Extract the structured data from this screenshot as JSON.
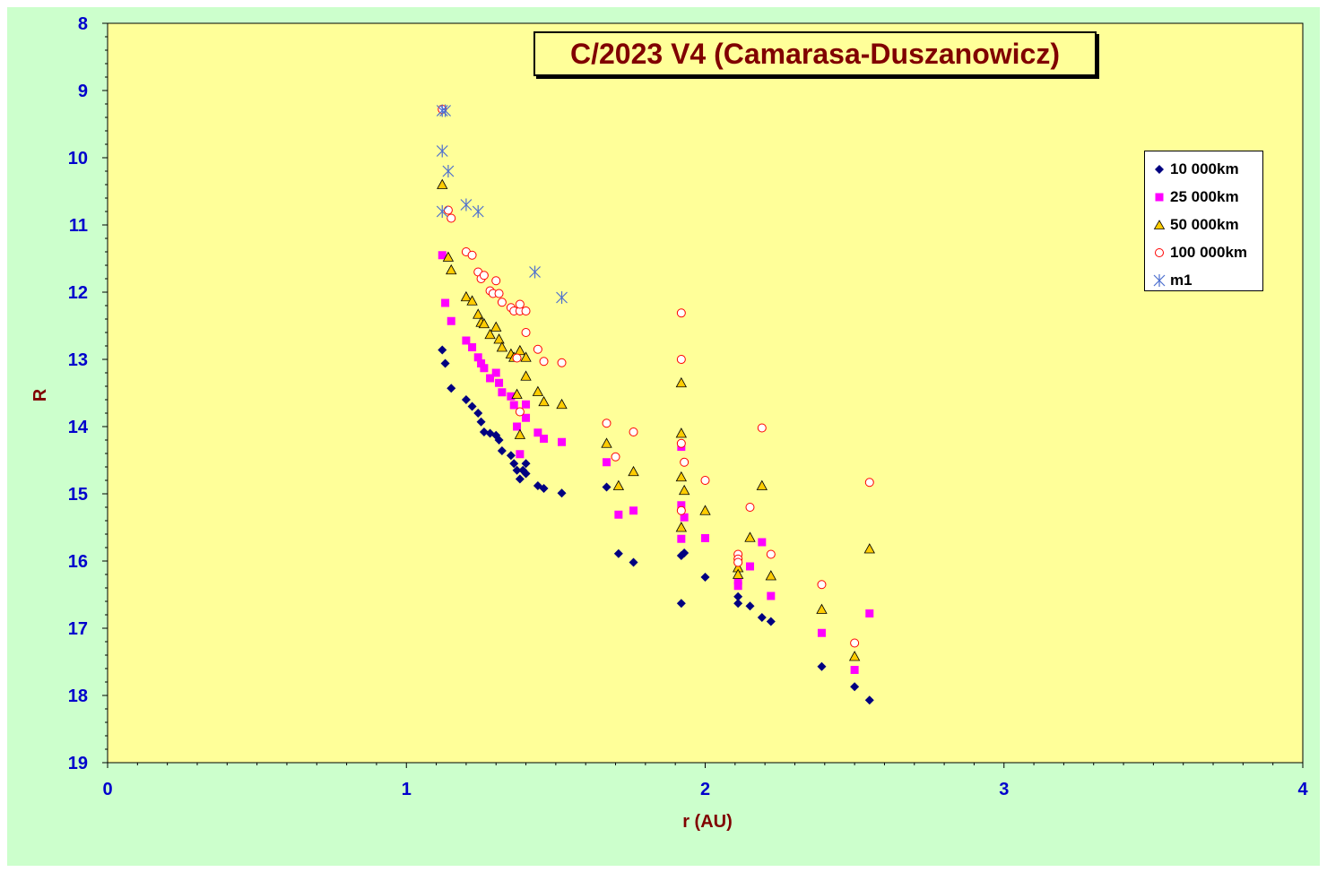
{
  "chart_data": {
    "type": "scatter",
    "title": "C/2023 V4 (Camarasa-Duszanowicz)",
    "xlabel": "r (AU)",
    "ylabel": "R",
    "xlim": [
      0,
      4
    ],
    "ylim": [
      19,
      8
    ],
    "y_inverted": true,
    "x_ticks": [
      0,
      1,
      2,
      3,
      4
    ],
    "y_ticks": [
      8,
      9,
      10,
      11,
      12,
      13,
      14,
      15,
      16,
      17,
      18,
      19
    ],
    "plot_background": "#ffff99",
    "chart_background": "#ccffcc",
    "legend_position": "right",
    "series": [
      {
        "name": "10 000km",
        "marker": "diamond",
        "color": "#000080",
        "points": [
          [
            1.12,
            12.86
          ],
          [
            1.13,
            13.06
          ],
          [
            1.15,
            13.43
          ],
          [
            1.2,
            13.6
          ],
          [
            1.22,
            13.7
          ],
          [
            1.24,
            13.8
          ],
          [
            1.25,
            13.93
          ],
          [
            1.26,
            14.08
          ],
          [
            1.28,
            14.1
          ],
          [
            1.3,
            14.13
          ],
          [
            1.31,
            14.2
          ],
          [
            1.32,
            14.36
          ],
          [
            1.35,
            14.43
          ],
          [
            1.36,
            14.55
          ],
          [
            1.37,
            14.65
          ],
          [
            1.38,
            14.78
          ],
          [
            1.39,
            14.65
          ],
          [
            1.4,
            14.7
          ],
          [
            1.4,
            14.55
          ],
          [
            1.44,
            14.88
          ],
          [
            1.46,
            14.92
          ],
          [
            1.52,
            14.99
          ],
          [
            1.67,
            14.9
          ],
          [
            1.71,
            15.89
          ],
          [
            1.76,
            16.02
          ],
          [
            1.92,
            15.92
          ],
          [
            1.93,
            15.88
          ],
          [
            1.92,
            16.63
          ],
          [
            2.0,
            16.24
          ],
          [
            2.11,
            16.53
          ],
          [
            2.11,
            16.63
          ],
          [
            2.15,
            16.67
          ],
          [
            2.19,
            16.84
          ],
          [
            2.22,
            16.9
          ],
          [
            2.39,
            17.57
          ],
          [
            2.5,
            17.87
          ],
          [
            2.55,
            18.07
          ]
        ]
      },
      {
        "name": "25 000km",
        "marker": "square",
        "color": "#ff00ff",
        "points": [
          [
            1.12,
            11.45
          ],
          [
            1.13,
            12.16
          ],
          [
            1.15,
            12.43
          ],
          [
            1.2,
            12.72
          ],
          [
            1.22,
            12.82
          ],
          [
            1.24,
            12.97
          ],
          [
            1.25,
            13.06
          ],
          [
            1.26,
            13.13
          ],
          [
            1.28,
            13.28
          ],
          [
            1.3,
            13.2
          ],
          [
            1.31,
            13.35
          ],
          [
            1.32,
            13.49
          ],
          [
            1.35,
            13.55
          ],
          [
            1.36,
            13.68
          ],
          [
            1.37,
            14.0
          ],
          [
            1.38,
            14.41
          ],
          [
            1.4,
            13.87
          ],
          [
            1.4,
            13.67
          ],
          [
            1.44,
            14.09
          ],
          [
            1.46,
            14.18
          ],
          [
            1.52,
            14.23
          ],
          [
            1.67,
            14.53
          ],
          [
            1.71,
            15.31
          ],
          [
            1.76,
            15.25
          ],
          [
            1.92,
            14.3
          ],
          [
            1.92,
            15.17
          ],
          [
            1.92,
            15.67
          ],
          [
            1.93,
            15.35
          ],
          [
            2.0,
            15.66
          ],
          [
            2.11,
            16.29
          ],
          [
            2.11,
            16.37
          ],
          [
            2.15,
            16.08
          ],
          [
            2.19,
            15.72
          ],
          [
            2.22,
            16.52
          ],
          [
            2.39,
            17.07
          ],
          [
            2.5,
            17.62
          ],
          [
            2.55,
            16.78
          ]
        ]
      },
      {
        "name": "50 000km",
        "marker": "triangle",
        "color": "#ffcc00",
        "points": [
          [
            1.12,
            10.4
          ],
          [
            1.14,
            11.48
          ],
          [
            1.15,
            11.67
          ],
          [
            1.2,
            12.07
          ],
          [
            1.22,
            12.13
          ],
          [
            1.24,
            12.33
          ],
          [
            1.25,
            12.45
          ],
          [
            1.26,
            12.47
          ],
          [
            1.28,
            12.63
          ],
          [
            1.3,
            12.52
          ],
          [
            1.31,
            12.7
          ],
          [
            1.32,
            12.82
          ],
          [
            1.35,
            12.92
          ],
          [
            1.36,
            12.97
          ],
          [
            1.37,
            13.52
          ],
          [
            1.38,
            14.12
          ],
          [
            1.38,
            12.87
          ],
          [
            1.4,
            12.97
          ],
          [
            1.4,
            13.25
          ],
          [
            1.44,
            13.48
          ],
          [
            1.46,
            13.63
          ],
          [
            1.52,
            13.67
          ],
          [
            1.67,
            14.25
          ],
          [
            1.71,
            14.88
          ],
          [
            1.76,
            14.67
          ],
          [
            1.92,
            13.35
          ],
          [
            1.92,
            14.1
          ],
          [
            1.92,
            14.75
          ],
          [
            1.93,
            14.95
          ],
          [
            1.92,
            15.5
          ],
          [
            2.0,
            15.25
          ],
          [
            2.11,
            16.1
          ],
          [
            2.11,
            16.2
          ],
          [
            2.15,
            15.65
          ],
          [
            2.19,
            14.88
          ],
          [
            2.22,
            16.22
          ],
          [
            2.39,
            16.72
          ],
          [
            2.5,
            17.42
          ],
          [
            2.55,
            15.82
          ]
        ]
      },
      {
        "name": "100 000km",
        "marker": "circle",
        "color": "#ff0000",
        "points": [
          [
            1.12,
            9.28
          ],
          [
            1.14,
            10.78
          ],
          [
            1.15,
            10.9
          ],
          [
            1.2,
            11.4
          ],
          [
            1.22,
            11.45
          ],
          [
            1.24,
            11.7
          ],
          [
            1.25,
            11.8
          ],
          [
            1.26,
            11.75
          ],
          [
            1.28,
            11.98
          ],
          [
            1.29,
            12.02
          ],
          [
            1.3,
            11.83
          ],
          [
            1.31,
            12.02
          ],
          [
            1.32,
            12.15
          ],
          [
            1.35,
            12.23
          ],
          [
            1.36,
            12.28
          ],
          [
            1.37,
            12.98
          ],
          [
            1.38,
            12.28
          ],
          [
            1.38,
            12.18
          ],
          [
            1.38,
            13.78
          ],
          [
            1.4,
            12.28
          ],
          [
            1.4,
            12.6
          ],
          [
            1.44,
            12.85
          ],
          [
            1.46,
            13.03
          ],
          [
            1.52,
            13.05
          ],
          [
            1.67,
            13.95
          ],
          [
            1.7,
            14.45
          ],
          [
            1.76,
            14.08
          ],
          [
            1.92,
            12.31
          ],
          [
            1.92,
            13.0
          ],
          [
            1.92,
            14.25
          ],
          [
            1.93,
            14.53
          ],
          [
            1.92,
            15.25
          ],
          [
            2.0,
            14.8
          ],
          [
            2.11,
            15.9
          ],
          [
            2.11,
            15.97
          ],
          [
            2.11,
            16.02
          ],
          [
            2.15,
            15.2
          ],
          [
            2.19,
            14.02
          ],
          [
            2.22,
            15.9
          ],
          [
            2.39,
            16.35
          ],
          [
            2.5,
            17.22
          ],
          [
            2.55,
            14.83
          ]
        ]
      },
      {
        "name": "m1",
        "marker": "star",
        "color": "#4d6fcf",
        "points": [
          [
            1.12,
            9.3
          ],
          [
            1.13,
            9.3
          ],
          [
            1.12,
            9.9
          ],
          [
            1.14,
            10.2
          ],
          [
            1.12,
            10.8
          ],
          [
            1.2,
            10.7
          ],
          [
            1.24,
            10.8
          ],
          [
            1.43,
            11.7
          ],
          [
            1.52,
            12.08
          ]
        ]
      }
    ]
  }
}
